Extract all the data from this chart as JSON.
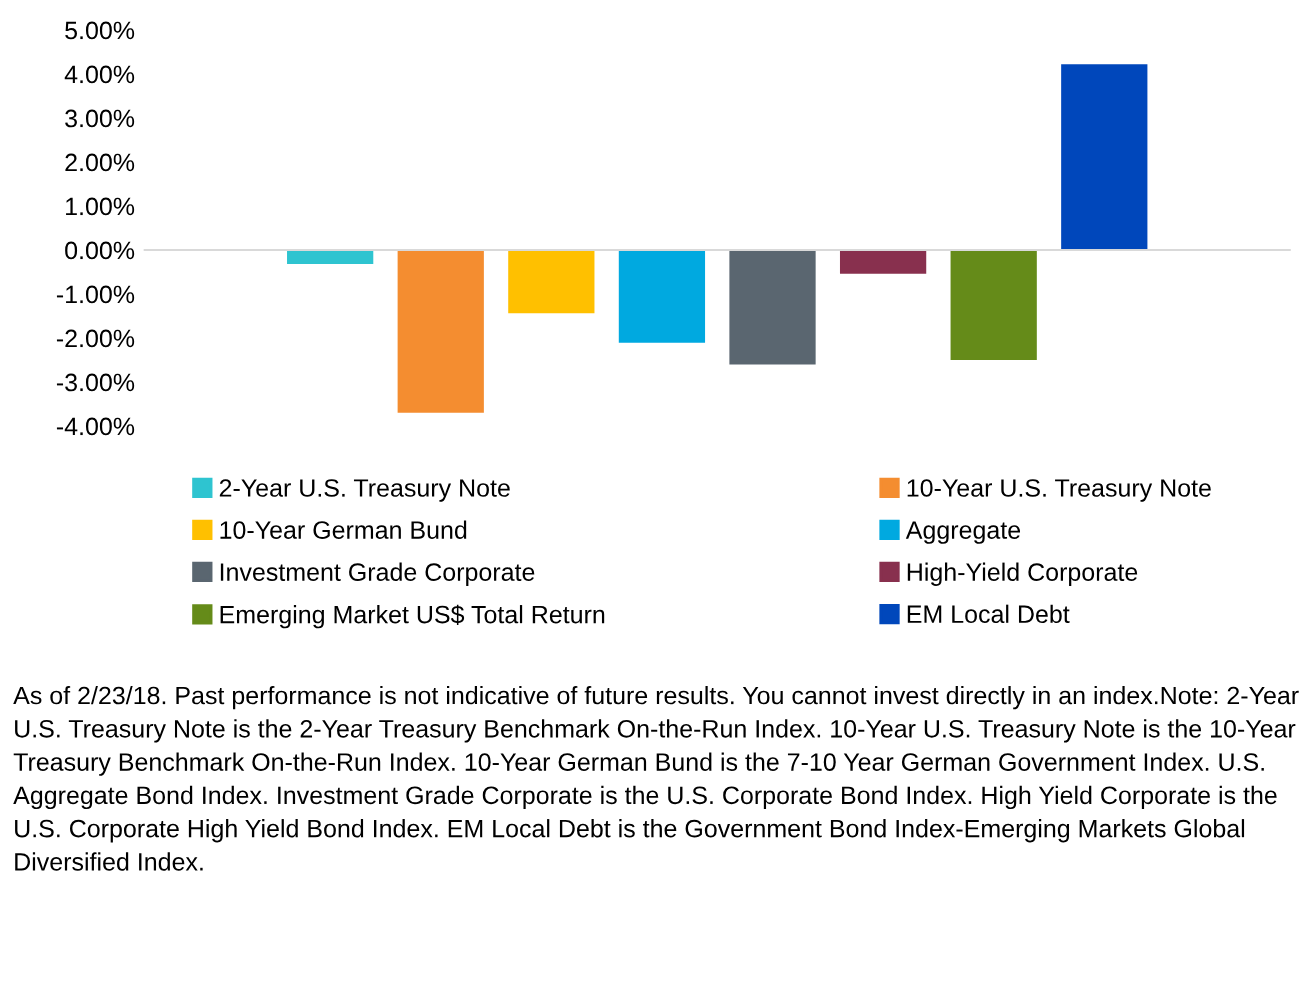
{
  "chart_data": {
    "type": "bar",
    "categories": [
      null
    ],
    "series": [
      {
        "name": "2-Year U.S. Treasury Note",
        "color": "#2ec4d0",
        "values": [
          -0.32
        ]
      },
      {
        "name": "10-Year U.S. Treasury Note",
        "color": "#f48d30",
        "values": [
          -3.7
        ]
      },
      {
        "name": "10-Year German Bund",
        "color": "#ffc000",
        "values": [
          -1.44
        ]
      },
      {
        "name": "Aggregate",
        "color": "#00a9e0",
        "values": [
          -2.11
        ]
      },
      {
        "name": "Investment Grade Corporate",
        "color": "#5a6670",
        "values": [
          -2.6
        ]
      },
      {
        "name": "High-Yield Corporate",
        "color": "#88304e",
        "values": [
          -0.54
        ]
      },
      {
        "name": "Emerging Market US$ Total Return",
        "color": "#658b19",
        "values": [
          -2.5
        ]
      },
      {
        "name": "EM Local Debt",
        "color": "#0047bb",
        "values": [
          4.22
        ]
      }
    ],
    "ylim": [
      -4,
      5
    ],
    "yticks": [
      {
        "value": 5,
        "label": "5.00%"
      },
      {
        "value": 4,
        "label": "4.00%"
      },
      {
        "value": 3,
        "label": "3.00%"
      },
      {
        "value": 2,
        "label": "2.00%"
      },
      {
        "value": 1,
        "label": "1.00%"
      },
      {
        "value": 0,
        "label": "0.00%"
      },
      {
        "value": -1,
        "label": "-1.00%"
      },
      {
        "value": -2,
        "label": "-2.00%"
      },
      {
        "value": -3,
        "label": "-3.00%"
      },
      {
        "value": -4,
        "label": "-4.00%"
      }
    ],
    "tick_labels": "y",
    "legend": "bottom",
    "annotations": [
      "As of 2/23/18. Past performance is not indicative of future results. You cannot invest directly in an index.Note: 2-Year U.S. Treasury Note is the 2-Year Treasury Benchmark On-the-Run Index. 10-Year U.S. Treasury Note is the 10-Year Treasury Benchmark On-the-Run Index. 10-Year German Bund is the 7-10 Year German Government Index. U.S. Aggregate Bond Index. Investment Grade Corporate is the U.S. Corporate Bond Index. High Yield Corporate is the U.S. Corporate High Yield Bond Index. EM Local Debt is the Government Bond Index-Emerging Markets Global Diversified Index."
    ]
  }
}
